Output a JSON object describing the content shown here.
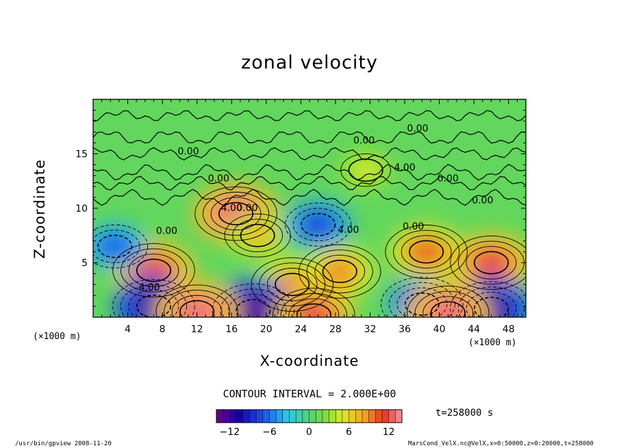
{
  "app": {
    "footer_left": "/usr/bin/gpview   2008-11-20",
    "footer_right": "MarsCond_VelX.nc@VelX,x=0:50000,z=0:20000,t=258000"
  },
  "chart_data": {
    "type": "heatmap",
    "title": "zonal velocity",
    "xlabel": "X-coordinate",
    "ylabel": "Z-coordinate",
    "x_unit": "(×1000 m)",
    "y_unit": "(×1000 m)",
    "xlim": [
      0,
      50
    ],
    "ylim": [
      0,
      20
    ],
    "x_ticks": [
      4,
      8,
      12,
      16,
      20,
      24,
      28,
      32,
      36,
      40,
      44,
      48
    ],
    "y_ticks": [
      5,
      10,
      15
    ],
    "contour_interval": "CONTOUR INTERVAL = 2.000E+00",
    "time_label": "t=258000 s",
    "colorbar": {
      "min": -14,
      "max": 14,
      "ticks": [
        -12,
        -6,
        0,
        6,
        12
      ]
    },
    "contour_labels": [
      {
        "text": "0.00",
        "x": 37.5,
        "z": 17.3
      },
      {
        "text": "0.00",
        "x": 31.3,
        "z": 16.2
      },
      {
        "text": "0.00",
        "x": 11.0,
        "z": 15.2
      },
      {
        "text": "4.00",
        "x": 36.0,
        "z": 13.7
      },
      {
        "text": "0.00",
        "x": 41.0,
        "z": 12.7
      },
      {
        "text": "0.00",
        "x": 14.5,
        "z": 12.7
      },
      {
        "text": "0.00",
        "x": 45.0,
        "z": 10.7
      },
      {
        "text": "4.00",
        "x": 16.0,
        "z": 10.0
      },
      {
        "text": "0.00",
        "x": 17.8,
        "z": 10.0
      },
      {
        "text": "4.00",
        "x": 29.5,
        "z": 8.0
      },
      {
        "text": "0.00",
        "x": 37.0,
        "z": 8.3
      },
      {
        "text": "0.00",
        "x": 8.5,
        "z": 7.9
      },
      {
        "text": "4.00",
        "x": 6.5,
        "z": 2.7
      }
    ],
    "features": [
      {
        "x": 7,
        "z": 4.3,
        "value": 12
      },
      {
        "x": 16.5,
        "z": 9.5,
        "value": 13
      },
      {
        "x": 19,
        "z": 7.5,
        "value": 7
      },
      {
        "x": 23,
        "z": 3,
        "value": 9
      },
      {
        "x": 28.5,
        "z": 4.2,
        "value": 9
      },
      {
        "x": 38.5,
        "z": 6,
        "value": 10
      },
      {
        "x": 46,
        "z": 5,
        "value": 12
      },
      {
        "x": 26,
        "z": 8.5,
        "value": -8
      },
      {
        "x": 7,
        "z": 1,
        "value": -12
      },
      {
        "x": 18.5,
        "z": 0.6,
        "value": -13
      },
      {
        "x": 38,
        "z": 1.2,
        "value": -9
      },
      {
        "x": 46,
        "z": 0.8,
        "value": -12
      },
      {
        "x": 2.5,
        "z": 6.5,
        "value": -7
      },
      {
        "x": 12,
        "z": 0.5,
        "value": 13
      },
      {
        "x": 25.5,
        "z": 0.2,
        "value": 12
      },
      {
        "x": 31.5,
        "z": 13.5,
        "value": 5
      },
      {
        "x": 41,
        "z": 0.4,
        "value": 13
      }
    ]
  }
}
